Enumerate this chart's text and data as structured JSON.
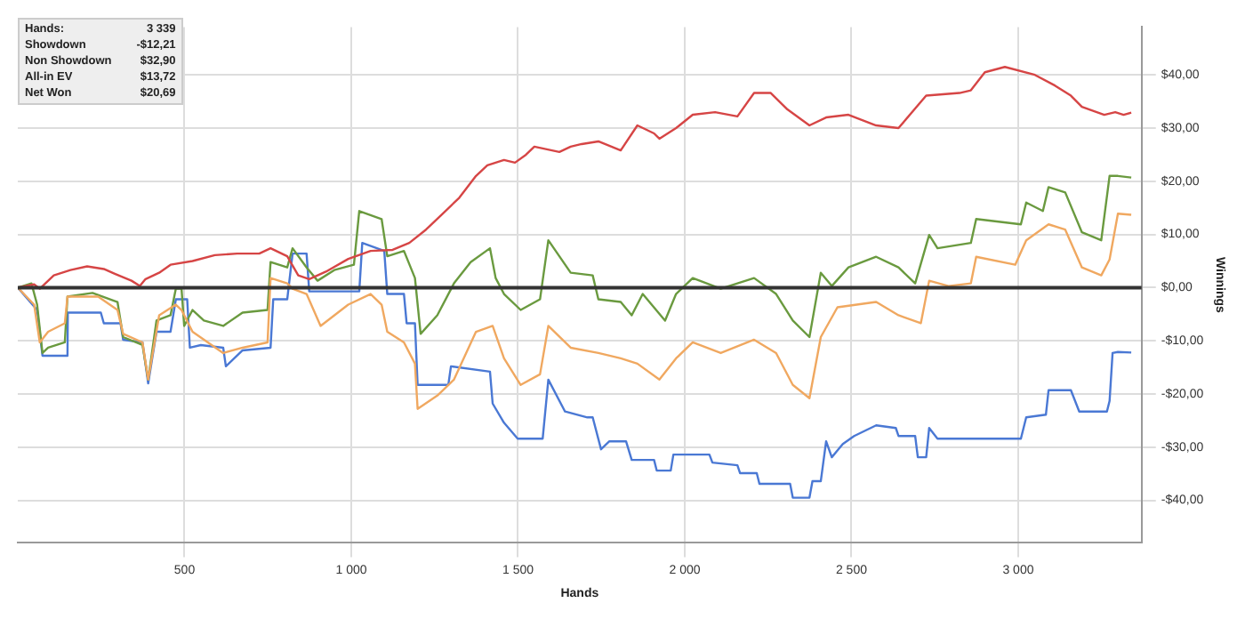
{
  "chart_data": {
    "type": "line",
    "xlabel": "Hands",
    "ylabel": "Winnings",
    "annotations": [
      "Hands:",
      "3 339",
      "Showdown",
      "-$12,21",
      "Non Showdown",
      "$32,90",
      "All-in EV",
      "$13,72",
      "Net Won",
      "$20,69"
    ],
    "xlim": [
      0,
      3370
    ],
    "xticks": [
      {
        "value": 500,
        "label": "500"
      },
      {
        "value": 1000,
        "label": "1 000"
      },
      {
        "value": 1500,
        "label": "1 500"
      },
      {
        "value": 2000,
        "label": "2 000"
      },
      {
        "value": 2500,
        "label": "2 500"
      },
      {
        "value": 3000,
        "label": "3 000"
      }
    ],
    "ylim": [
      -48,
      49
    ],
    "yticks": [
      {
        "value": -40,
        "label": "-$40,00"
      },
      {
        "value": -30,
        "label": "-$30,00"
      },
      {
        "value": -20,
        "label": "-$20,00"
      },
      {
        "value": -10,
        "label": "-$10,00"
      },
      {
        "value": 0,
        "label": "$0,00"
      },
      {
        "value": 10,
        "label": "$10,00"
      },
      {
        "value": 20,
        "label": "$20,00"
      },
      {
        "value": 30,
        "label": "$30,00"
      },
      {
        "value": 40,
        "label": "$40,00"
      }
    ],
    "grid": true,
    "legend": false,
    "marker": "none",
    "line_style": "solid",
    "ref_lines": [
      {
        "axis": "y",
        "value": 0,
        "color": "#333333"
      }
    ],
    "series": [
      {
        "color": "#d64545",
        "x": [
          0,
          49,
          66,
          108,
          158,
          208,
          258,
          291,
          341,
          366,
          383,
          424,
          458,
          524,
          591,
          658,
          724,
          758,
          808,
          841,
          874,
          924,
          991,
          1058,
          1124,
          1174,
          1224,
          1274,
          1324,
          1374,
          1408,
          1458,
          1491,
          1524,
          1549,
          1624,
          1658,
          1691,
          1741,
          1808,
          1858,
          1908,
          1924,
          1974,
          2024,
          2091,
          2158,
          2208,
          2258,
          2308,
          2374,
          2424,
          2491,
          2574,
          2641,
          2724,
          2824,
          2858,
          2900,
          2960,
          3050,
          3110,
          3158,
          3191,
          3258,
          3291,
          3316,
          3339
        ],
        "values": [
          0,
          0.6,
          -0.2,
          2.3,
          3.3,
          4.0,
          3.5,
          2.6,
          1.3,
          0.3,
          1.6,
          2.8,
          4.3,
          5.0,
          6.1,
          6.4,
          6.4,
          7.4,
          5.9,
          2.3,
          1.6,
          3.0,
          5.4,
          6.9,
          7.1,
          8.4,
          10.9,
          13.9,
          16.9,
          21.0,
          23.0,
          24.0,
          23.5,
          25.0,
          26.5,
          25.5,
          26.5,
          27.0,
          27.5,
          25.8,
          30.5,
          29.0,
          28.0,
          30.0,
          32.5,
          33.0,
          32.2,
          36.6,
          36.6,
          33.5,
          30.5,
          32.0,
          32.5,
          30.5,
          30.0,
          36.1,
          36.6,
          37.1,
          40.5,
          41.5,
          40.0,
          38.0,
          36.1,
          34.0,
          32.5,
          33.0,
          32.5,
          32.9
        ]
      },
      {
        "color": "#f0a860",
        "x": [
          0,
          49,
          66,
          91,
          141,
          149,
          241,
          299,
          316,
          374,
          391,
          424,
          474,
          491,
          524,
          616,
          674,
          749,
          758,
          808,
          824,
          866,
          908,
          991,
          1058,
          1091,
          1108,
          1158,
          1191,
          1199,
          1258,
          1308,
          1374,
          1424,
          1458,
          1508,
          1566,
          1591,
          1658,
          1741,
          1808,
          1858,
          1924,
          1974,
          2024,
          2108,
          2208,
          2274,
          2324,
          2374,
          2408,
          2458,
          2574,
          2641,
          2708,
          2733,
          2791,
          2858,
          2874,
          2991,
          3024,
          3091,
          3141,
          3191,
          3249,
          3274,
          3299,
          3339
        ],
        "values": [
          0,
          -3.2,
          -10.3,
          -8.3,
          -6.7,
          -1.7,
          -1.7,
          -4.2,
          -8.7,
          -10.3,
          -17.3,
          -5.2,
          -3.2,
          -4.2,
          -8.3,
          -12.3,
          -11.3,
          -10.3,
          1.8,
          0.8,
          -0.2,
          -1.2,
          -7.2,
          -3.2,
          -1.2,
          -3.2,
          -8.3,
          -10.3,
          -14.3,
          -22.8,
          -20.3,
          -17.3,
          -8.3,
          -7.2,
          -13.3,
          -18.3,
          -16.3,
          -7.2,
          -11.3,
          -12.3,
          -13.3,
          -14.3,
          -17.3,
          -13.3,
          -10.3,
          -12.3,
          -9.8,
          -12.3,
          -18.3,
          -20.8,
          -9.3,
          -3.7,
          -2.7,
          -5.2,
          -6.7,
          1.3,
          0.3,
          0.8,
          5.8,
          4.3,
          8.9,
          11.9,
          10.9,
          3.8,
          2.3,
          5.3,
          13.9,
          13.7
        ]
      },
      {
        "color": "#6a9a3f",
        "x": [
          0,
          41,
          58,
          74,
          91,
          141,
          149,
          224,
          299,
          316,
          374,
          391,
          416,
          458,
          474,
          491,
          499,
          524,
          558,
          616,
          674,
          749,
          758,
          808,
          824,
          866,
          899,
          949,
          1008,
          1024,
          1091,
          1108,
          1158,
          1191,
          1208,
          1258,
          1308,
          1358,
          1416,
          1433,
          1458,
          1508,
          1566,
          1591,
          1658,
          1724,
          1741,
          1808,
          1841,
          1874,
          1941,
          1974,
          2024,
          2108,
          2208,
          2274,
          2324,
          2374,
          2408,
          2441,
          2491,
          2574,
          2641,
          2691,
          2733,
          2758,
          2858,
          2874,
          3008,
          3024,
          3074,
          3091,
          3141,
          3191,
          3249,
          3274,
          3299,
          3339
        ],
        "values": [
          0,
          0.8,
          -3.2,
          -12.3,
          -11.3,
          -10.3,
          -1.7,
          -1.0,
          -2.7,
          -9.3,
          -10.8,
          -17.3,
          -6.2,
          -5.2,
          -0.2,
          -0.2,
          -7.2,
          -4.2,
          -6.2,
          -7.2,
          -4.7,
          -4.2,
          4.8,
          3.8,
          7.4,
          3.8,
          1.3,
          3.3,
          4.3,
          14.4,
          12.9,
          5.9,
          6.9,
          1.8,
          -8.7,
          -5.2,
          0.8,
          4.8,
          7.4,
          1.8,
          -1.2,
          -4.2,
          -2.2,
          8.9,
          2.8,
          2.3,
          -2.2,
          -2.7,
          -5.2,
          -1.2,
          -6.2,
          -1.2,
          1.8,
          -0.2,
          1.8,
          -1.2,
          -6.2,
          -9.3,
          2.8,
          0.3,
          3.8,
          5.8,
          3.8,
          0.8,
          9.9,
          7.4,
          8.4,
          12.9,
          11.9,
          16.0,
          14.4,
          18.9,
          17.9,
          10.4,
          8.9,
          21.0,
          21.0,
          20.7
        ]
      },
      {
        "color": "#4a78d4",
        "x": [
          0,
          58,
          74,
          149,
          150,
          249,
          258,
          308,
          316,
          374,
          391,
          416,
          458,
          474,
          508,
          516,
          549,
          616,
          624,
          674,
          758,
          766,
          808,
          824,
          866,
          874,
          1024,
          1033,
          1099,
          1108,
          1158,
          1166,
          1191,
          1199,
          1291,
          1299,
          1416,
          1424,
          1458,
          1499,
          1574,
          1591,
          1641,
          1708,
          1724,
          1749,
          1774,
          1824,
          1841,
          1908,
          1916,
          1958,
          1966,
          2074,
          2083,
          2158,
          2166,
          2216,
          2224,
          2316,
          2324,
          2374,
          2383,
          2408,
          2424,
          2441,
          2474,
          2508,
          2574,
          2633,
          2641,
          2691,
          2699,
          2724,
          2733,
          2758,
          3008,
          3024,
          3083,
          3091,
          3158,
          3183,
          3266,
          3274,
          3283,
          3299,
          3339
        ],
        "values": [
          0,
          -4.2,
          -12.8,
          -12.8,
          -4.7,
          -4.7,
          -6.7,
          -6.7,
          -9.8,
          -10.3,
          -18.0,
          -8.3,
          -8.3,
          -2.2,
          -2.2,
          -11.3,
          -10.8,
          -11.3,
          -14.8,
          -11.8,
          -11.3,
          -2.2,
          -2.2,
          6.4,
          6.4,
          -0.7,
          -0.7,
          8.4,
          6.9,
          -1.2,
          -1.2,
          -6.7,
          -6.7,
          -18.3,
          -18.3,
          -14.8,
          -15.8,
          -21.8,
          -25.4,
          -28.4,
          -28.4,
          -17.3,
          -23.3,
          -24.4,
          -24.4,
          -30.4,
          -28.9,
          -28.9,
          -32.4,
          -32.4,
          -34.4,
          -34.4,
          -31.4,
          -31.4,
          -32.9,
          -33.4,
          -34.9,
          -34.9,
          -36.9,
          -36.9,
          -39.5,
          -39.5,
          -36.4,
          -36.4,
          -28.9,
          -31.9,
          -29.4,
          -27.9,
          -25.9,
          -26.4,
          -27.9,
          -27.9,
          -31.9,
          -31.9,
          -26.4,
          -28.4,
          -28.4,
          -24.4,
          -23.9,
          -19.3,
          -19.3,
          -23.3,
          -23.3,
          -21.3,
          -12.3,
          -12.1,
          -12.2
        ]
      }
    ]
  }
}
